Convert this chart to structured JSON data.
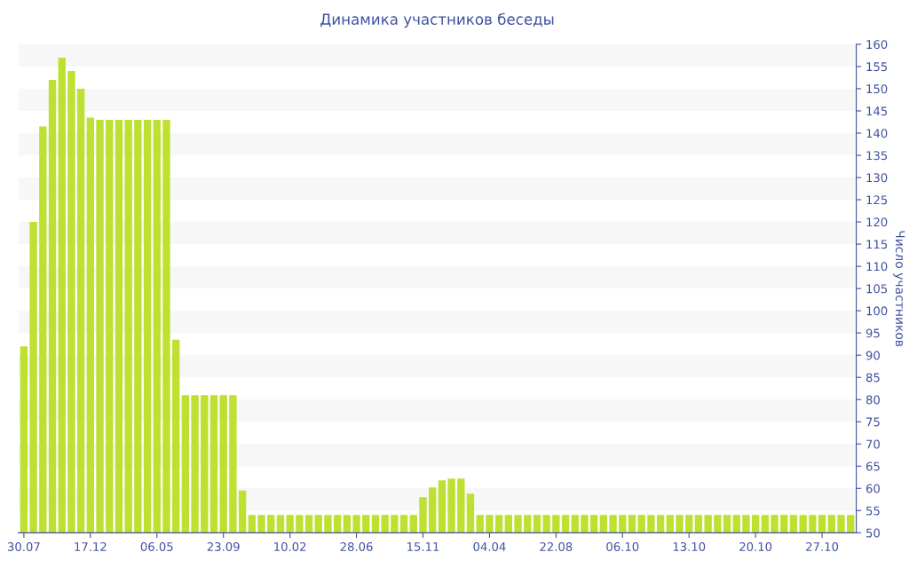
{
  "chart_data": {
    "type": "bar",
    "title": "Динамика участников беседы",
    "ylabel": "Число участников",
    "categories": [
      "30.07",
      null,
      null,
      null,
      null,
      null,
      null,
      "17.12",
      null,
      null,
      null,
      null,
      null,
      null,
      "06.05",
      null,
      null,
      null,
      null,
      null,
      null,
      "23.09",
      null,
      null,
      null,
      null,
      null,
      null,
      "10.02",
      null,
      null,
      null,
      null,
      null,
      null,
      "28.06",
      null,
      null,
      null,
      null,
      null,
      null,
      "15.11",
      null,
      null,
      null,
      null,
      null,
      null,
      "04.04",
      null,
      null,
      null,
      null,
      null,
      null,
      "22.08",
      null,
      null,
      null,
      null,
      null,
      null,
      "06.10",
      null,
      null,
      null,
      null,
      null,
      null,
      "13.10",
      null,
      null,
      null,
      null,
      null,
      null,
      "20.10",
      null,
      null,
      null,
      null,
      null,
      null,
      "27.10",
      null,
      null,
      null
    ],
    "values": [
      92,
      120,
      141.5,
      152,
      157,
      154,
      150,
      143.5,
      143,
      143,
      143,
      143,
      143,
      143,
      143,
      143,
      93.5,
      81,
      81,
      81,
      81,
      81,
      81,
      59.5,
      54,
      54,
      54,
      54,
      54,
      54,
      54,
      54,
      54,
      54,
      54,
      54,
      54,
      54,
      54,
      54,
      54,
      54,
      58,
      60.2,
      61.8,
      62.2,
      62.2,
      58.8,
      54,
      54,
      54,
      54,
      54,
      54,
      54,
      54,
      54,
      54,
      54,
      54,
      54,
      54,
      54,
      54,
      54,
      54,
      54,
      54,
      54,
      54,
      54,
      54,
      54,
      54,
      54,
      54,
      54,
      54,
      54,
      54,
      54,
      54,
      54,
      54,
      54,
      54,
      54,
      54
    ],
    "color": "#bde031",
    "ylim": [
      50,
      160
    ],
    "yticks": [
      50,
      55,
      60,
      65,
      70,
      75,
      80,
      85,
      90,
      95,
      100,
      105,
      110,
      115,
      120,
      125,
      130,
      135,
      140,
      145,
      150,
      155,
      160
    ],
    "bands": [
      {
        "axis": "y",
        "from": 55,
        "to": 60,
        "color": "#f7f7f7"
      },
      {
        "axis": "y",
        "from": 65,
        "to": 70,
        "color": "#f7f7f7"
      },
      {
        "axis": "y",
        "from": 75,
        "to": 80,
        "color": "#f7f7f7"
      },
      {
        "axis": "y",
        "from": 85,
        "to": 90,
        "color": "#f7f7f7"
      },
      {
        "axis": "y",
        "from": 95,
        "to": 100,
        "color": "#f7f7f7"
      },
      {
        "axis": "y",
        "from": 105,
        "to": 110,
        "color": "#f7f7f7"
      },
      {
        "axis": "y",
        "from": 115,
        "to": 120,
        "color": "#f7f7f7"
      },
      {
        "axis": "y",
        "from": 125,
        "to": 130,
        "color": "#f7f7f7"
      },
      {
        "axis": "y",
        "from": 135,
        "to": 140,
        "color": "#f7f7f7"
      },
      {
        "axis": "y",
        "from": 145,
        "to": 150,
        "color": "#f7f7f7"
      },
      {
        "axis": "y",
        "from": 155,
        "to": 160,
        "color": "#f7f7f7"
      }
    ]
  }
}
